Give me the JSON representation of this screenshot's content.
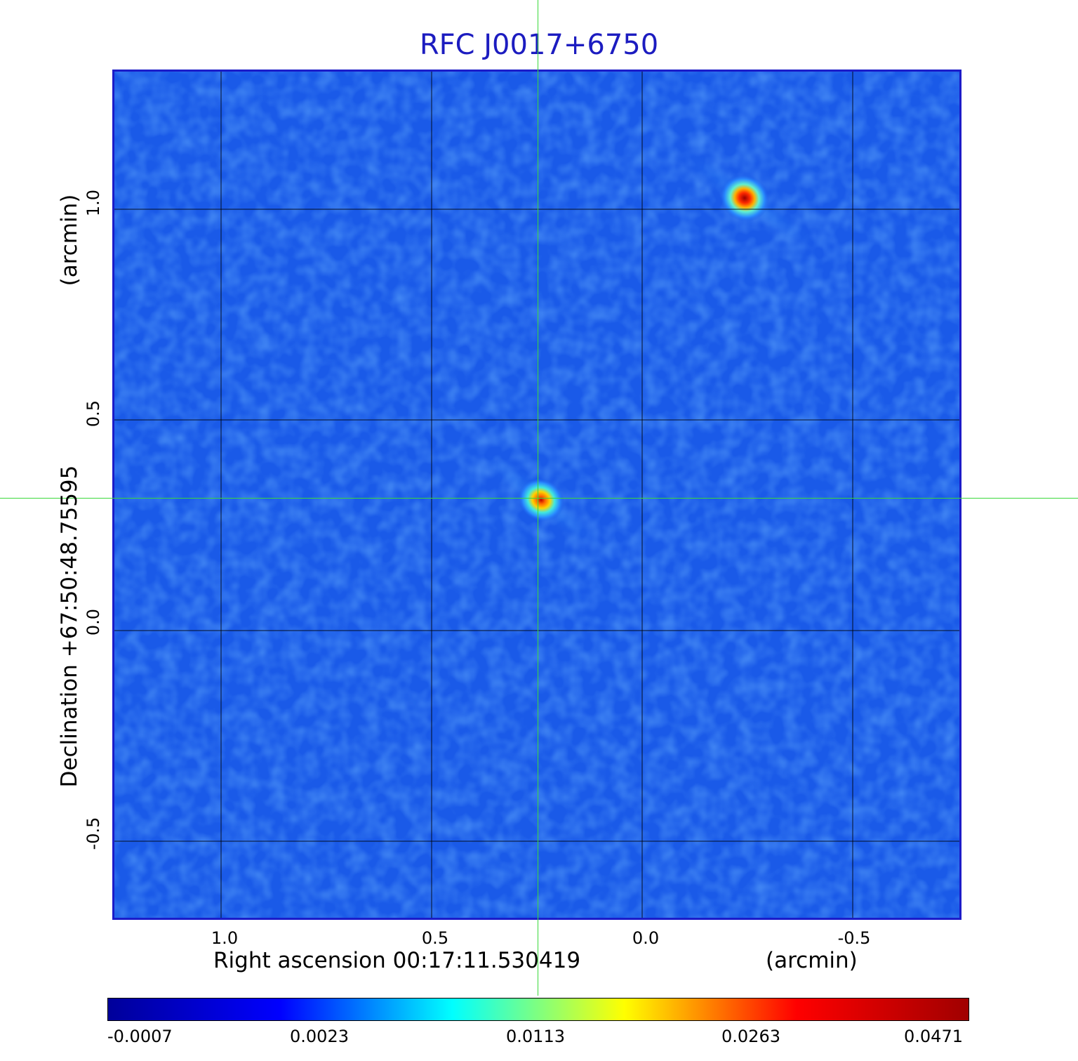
{
  "title": "RFC J0017+6750",
  "x_axis": {
    "label": "Right ascension  00:17:11.530419",
    "unit": "(arcmin)",
    "ticks": [
      "1.0",
      "0.5",
      "0.0",
      "-0.5"
    ]
  },
  "y_axis": {
    "label": "Declination  +67:50:48.75595",
    "unit": "(arcmin)",
    "ticks": [
      "1.0",
      "0.5",
      "0.0",
      "-0.5"
    ]
  },
  "colorbar": {
    "labels": [
      "-0.0007",
      "0.0023",
      "0.0113",
      "0.0263",
      "0.0471"
    ],
    "colors": [
      "#00009a",
      "#0000ff",
      "#00ffff",
      "#ffff00",
      "#ff0000",
      "#a00000"
    ]
  },
  "colors": {
    "background_field": "#1a5ae8",
    "frame": "#1c1cc8",
    "title": "#1c1cc0",
    "crosshair": "#3ad83a",
    "grid": "#000000"
  },
  "sources": [
    {
      "name": "central-source",
      "ra_offset_arcmin": 0.25,
      "dec_offset_arcmin": 0.31,
      "peak": 0.035
    },
    {
      "name": "secondary-source",
      "ra_offset_arcmin": -0.24,
      "dec_offset_arcmin": 1.03,
      "peak": 0.0471
    }
  ]
}
